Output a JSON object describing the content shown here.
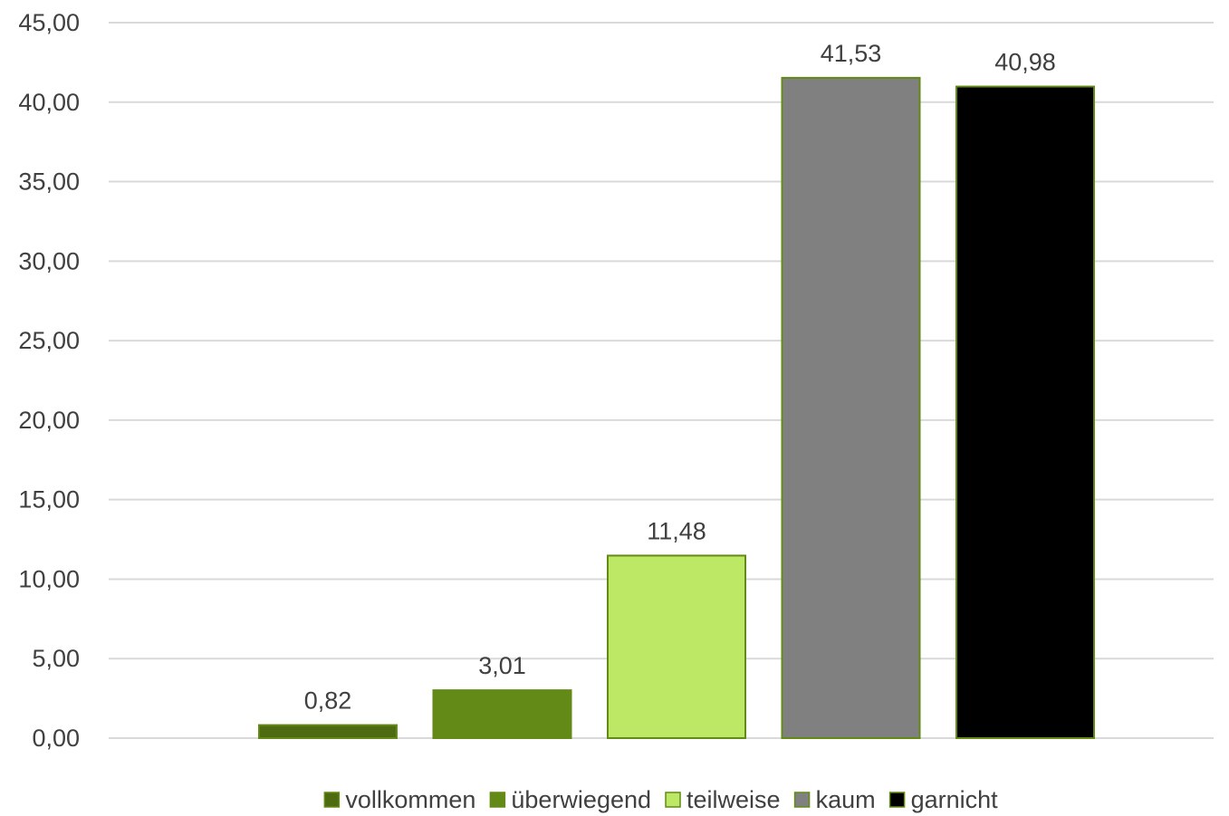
{
  "chart_data": {
    "type": "bar",
    "categories": [
      "vollkommen",
      "überwiegend",
      "teilweise",
      "kaum",
      "garnicht"
    ],
    "values": [
      0.82,
      3.01,
      11.48,
      41.53,
      40.98
    ],
    "value_labels": [
      "0,82",
      "3,01",
      "11,48",
      "41,53",
      "40,98"
    ],
    "title": "",
    "xlabel": "",
    "ylabel": "",
    "ylim": [
      0,
      45
    ],
    "y_ticks": [
      0,
      5,
      10,
      15,
      20,
      25,
      30,
      35,
      40,
      45
    ],
    "y_tick_labels": [
      "0,00",
      "5,00",
      "10,00",
      "15,00",
      "20,00",
      "25,00",
      "30,00",
      "35,00",
      "40,00",
      "45,00"
    ],
    "grid": true,
    "legend_position": "bottom",
    "colors": [
      "#4e6b12",
      "#638a16",
      "#bde865",
      "#808080",
      "#000000"
    ],
    "bar_outline_color": "#638a16"
  }
}
